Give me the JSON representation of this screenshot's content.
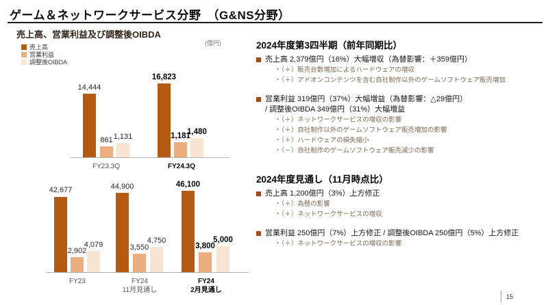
{
  "slide": {
    "title": "ゲーム＆ネットワークサービス分野　（G&NS分野）",
    "page_number": "15"
  },
  "chart_section": {
    "title": "売上高、営業利益及び調整後OIBDA",
    "unit_label": "(億円)",
    "legend": [
      {
        "label": "売上高",
        "color": "#b45a13"
      },
      {
        "label": "営業利益",
        "color": "#ebae80"
      },
      {
        "label": "調整後OIBDA",
        "color": "#f7e4d3"
      }
    ]
  },
  "chart_data": [
    {
      "type": "bar",
      "title": "売上高、営業利益及び調整後OIBDA（四半期比較）",
      "unit": "億円",
      "grid": false,
      "legend_position": "top-left",
      "categories": [
        "FY23.3Q",
        "FY24.3Q"
      ],
      "series": [
        {
          "name": "売上高",
          "values": [
            14444,
            16823
          ]
        },
        {
          "name": "営業利益",
          "values": [
            861,
            1181
          ]
        },
        {
          "name": "調整後OIBDA",
          "values": [
            1131,
            1480
          ]
        }
      ],
      "emphasized_category_index": 1
    },
    {
      "type": "bar",
      "title": "売上高、営業利益及び調整後OIBDA（年度）",
      "unit": "億円",
      "grid": false,
      "categories": [
        "FY23",
        "FY24\n11月見通し",
        "FY24\n2月見通し"
      ],
      "series": [
        {
          "name": "売上高",
          "values": [
            42677,
            44900,
            46100
          ]
        },
        {
          "name": "営業利益",
          "values": [
            2902,
            3550,
            3800
          ]
        },
        {
          "name": "調整後OIBDA",
          "values": [
            4079,
            4750,
            5000
          ]
        }
      ],
      "emphasized_category_index": 2
    }
  ],
  "right": {
    "sections": [
      {
        "heading": "2024年度第3四半期（前年同期比）",
        "items": [
          {
            "lines": [
              "売上高  2,379億円（16%）大幅増収（為替影響：＋359億円）"
            ],
            "subs": [
              "・（＋）販売台数増加によるハードウェアの増収",
              "・（＋）アドオンコンテンツを含む自社制作以外のゲームソフトウェア販売増加"
            ]
          },
          {
            "lines": [
              "営業利益  319億円（37%）大幅増益（為替影響：△29億円）",
              "/ 調整後OIBDA  349億円（31%）大幅増益"
            ],
            "subs": [
              "・（＋）ネットワークサービスの増収の影響",
              "・（＋）自社制作以外のゲームソフトウェア販売増加の影響",
              "・（＋）ハードウェアの損失縮小",
              "・（－）自社制作のゲームソフトウェア販売減少の影響"
            ]
          }
        ]
      },
      {
        "heading": "2024年度見通し（11月時点比）",
        "items": [
          {
            "lines": [
              "売上高  1,200億円（3%）上方修正"
            ],
            "subs": [
              "・（＋）為替の影響",
              "・（＋）ネットワークサービスの増収"
            ]
          },
          {
            "lines": [
              "営業利益  250億円（7%）上方修正 / 調整後OIBDA  250億円（5%）上方修正"
            ],
            "subs": [
              "・（＋）ネットワークサービスの増収の影響"
            ]
          }
        ]
      }
    ]
  }
}
